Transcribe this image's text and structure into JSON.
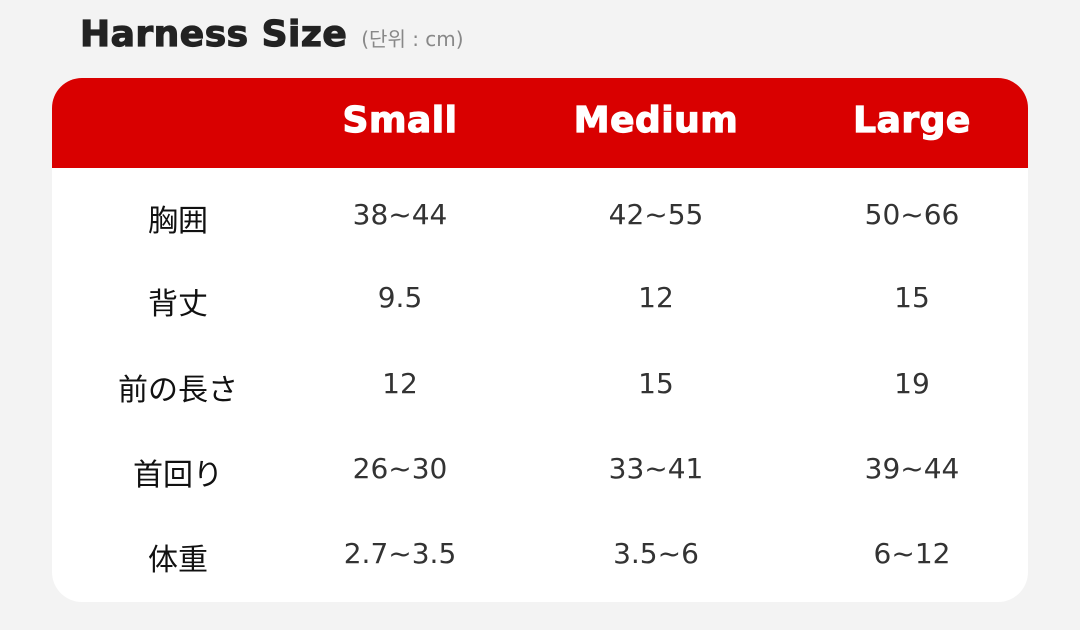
{
  "title": "Harness Size",
  "unit": "(단위 : cm)",
  "header_color": "#d90000",
  "columns": [
    "Small",
    "Medium",
    "Large"
  ],
  "rows": [
    {
      "label": "胸囲",
      "values": [
        "38~44",
        "42~55",
        "50~66"
      ]
    },
    {
      "label": "背丈",
      "values": [
        "9.5",
        "12",
        "15"
      ]
    },
    {
      "label": "前の長さ",
      "values": [
        "12",
        "15",
        "19"
      ]
    },
    {
      "label": "首回り",
      "values": [
        "26~30",
        "33~41",
        "39~44"
      ]
    },
    {
      "label": "体重",
      "values": [
        "2.7~3.5",
        "3.5~6",
        "6~12"
      ]
    }
  ]
}
